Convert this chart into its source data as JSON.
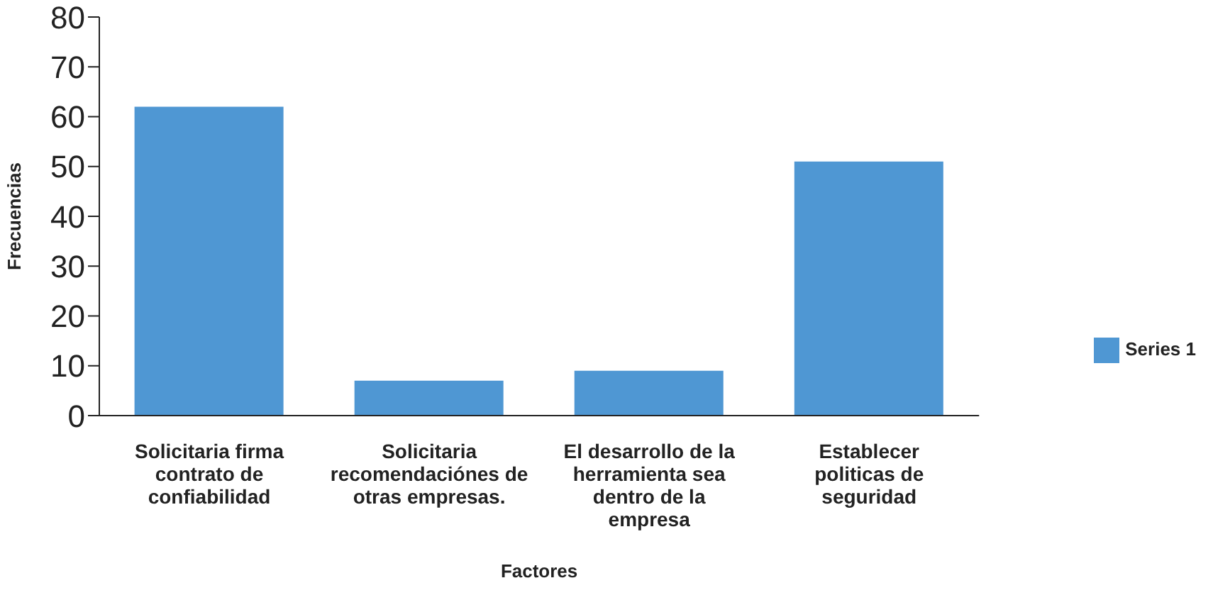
{
  "chart_data": {
    "type": "bar",
    "xlabel": "Factores",
    "ylabel": "Frecuencias",
    "categories": [
      "Solicitaria firma contrato de confiabilidad",
      "Solicitaria recomendaciónes de otras empresas.",
      "El desarrollo de la herramienta sea dentro de la empresa",
      "Establecer politicas de seguridad"
    ],
    "series": [
      {
        "name": "Series 1",
        "color": "#4f97d3",
        "values": [
          62,
          7,
          9,
          51
        ]
      }
    ],
    "ylim": [
      0,
      80
    ],
    "yticks": [
      0,
      10,
      20,
      30,
      40,
      50,
      60,
      70,
      80
    ],
    "grid": false,
    "legend": "right"
  }
}
